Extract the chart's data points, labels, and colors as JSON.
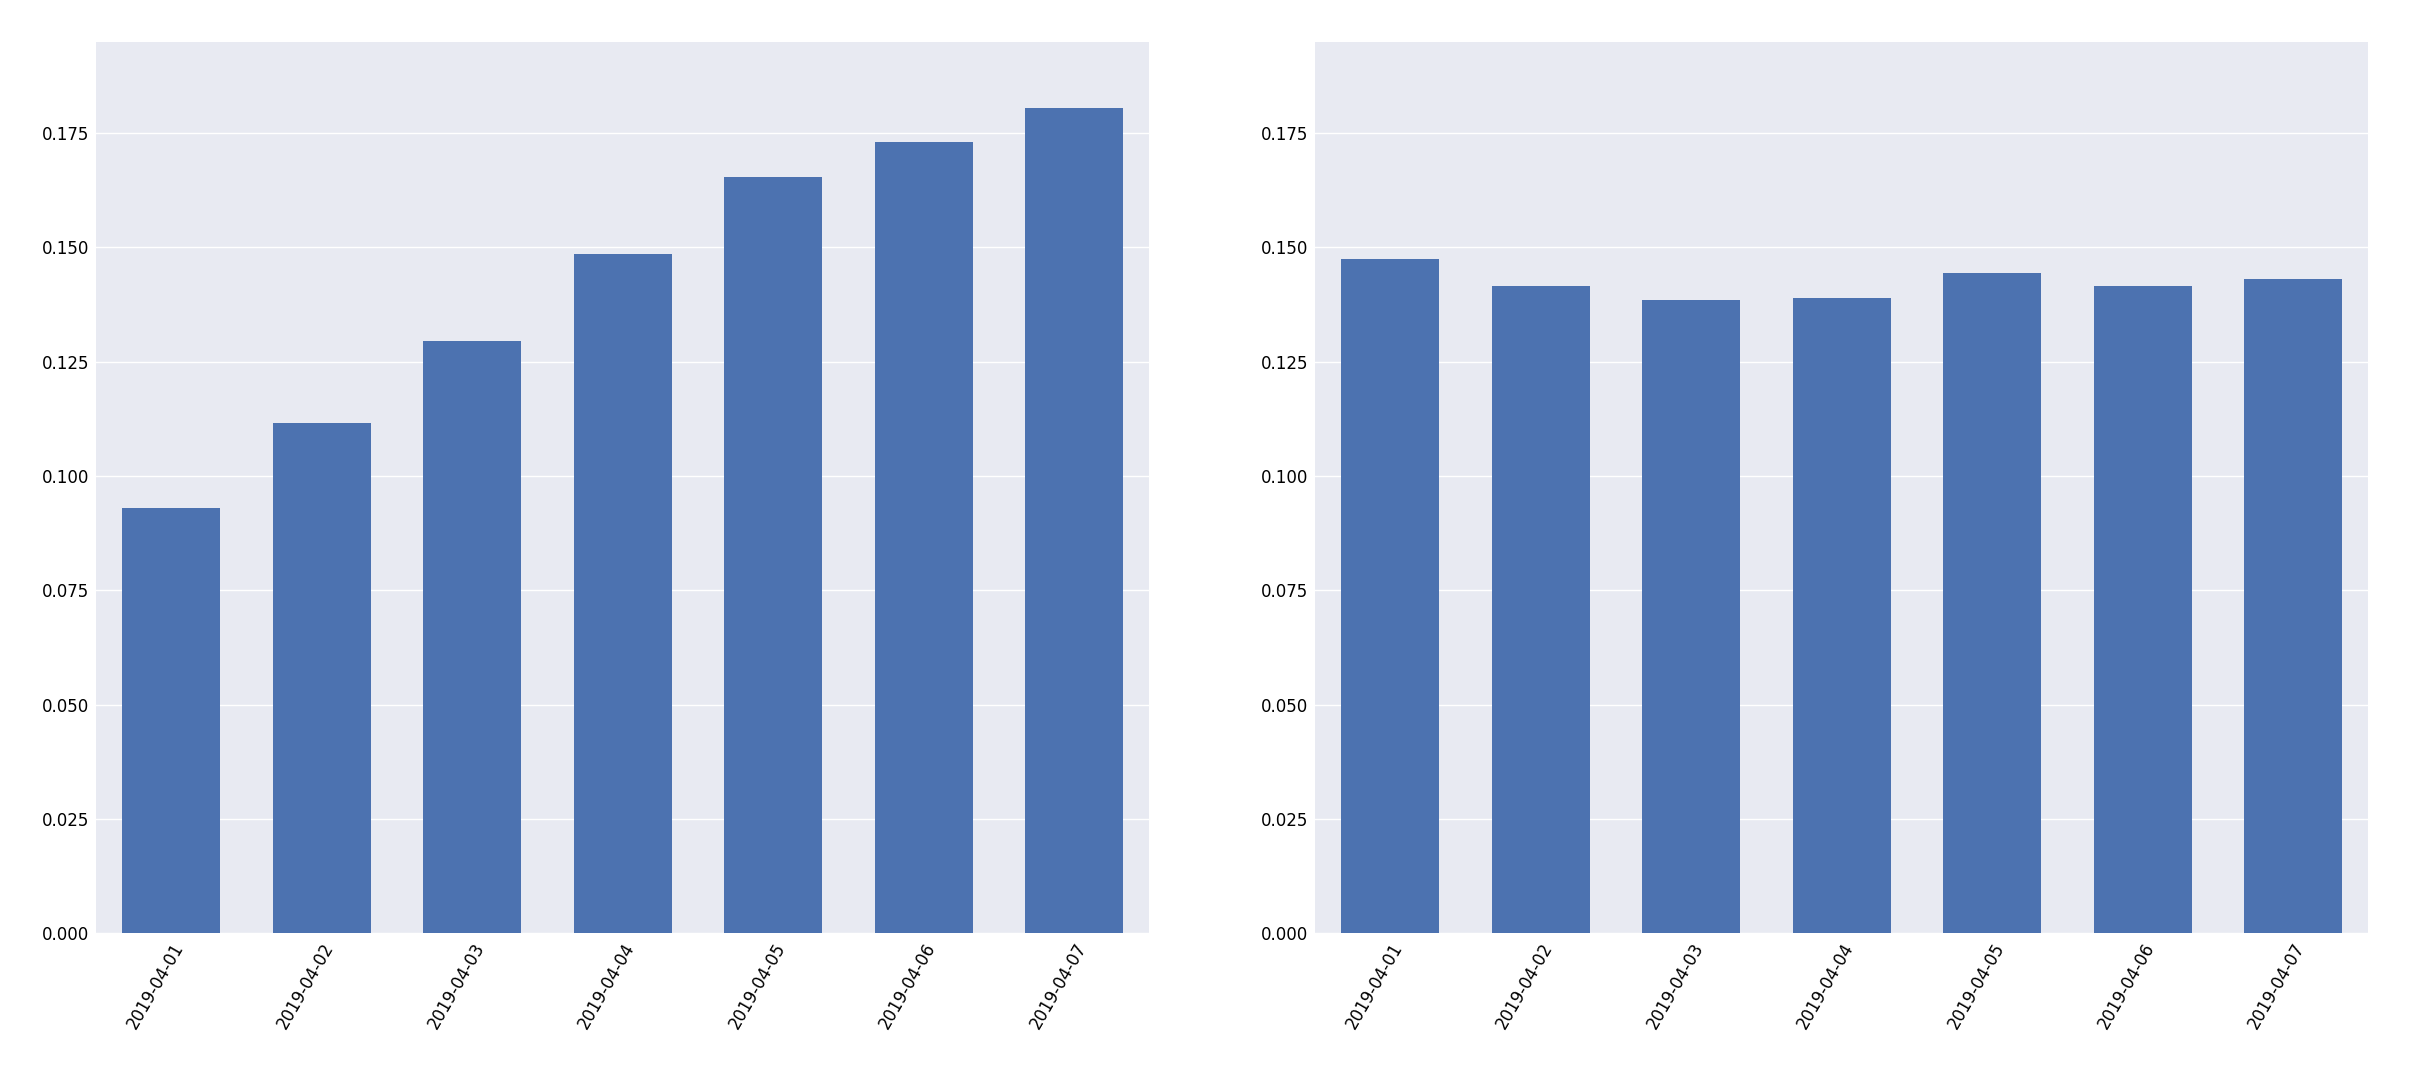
{
  "left_chart": {
    "dates": [
      "2019-04-01",
      "2019-04-02",
      "2019-04-03",
      "2019-04-04",
      "2019-04-05",
      "2019-04-06",
      "2019-04-07"
    ],
    "values": [
      0.093,
      0.1115,
      0.1295,
      0.1485,
      0.1655,
      0.173,
      0.1805
    ]
  },
  "right_chart": {
    "dates": [
      "2019-04-01",
      "2019-04-02",
      "2019-04-03",
      "2019-04-04",
      "2019-04-05",
      "2019-04-06",
      "2019-04-07"
    ],
    "values": [
      0.1475,
      0.1415,
      0.1385,
      0.139,
      0.1445,
      0.1415,
      0.143
    ]
  },
  "bar_color": "#4c72b0",
  "ax_background_color": "#e8eaf2",
  "fig_background_color": "#ffffff",
  "grid_color": "white",
  "ylim_left": [
    0,
    0.195
  ],
  "ylim_right": [
    0,
    0.195
  ],
  "yticks": [
    0.0,
    0.025,
    0.05,
    0.075,
    0.1,
    0.125,
    0.15,
    0.175
  ],
  "tick_label_fontsize": 12,
  "bar_width": 0.65
}
